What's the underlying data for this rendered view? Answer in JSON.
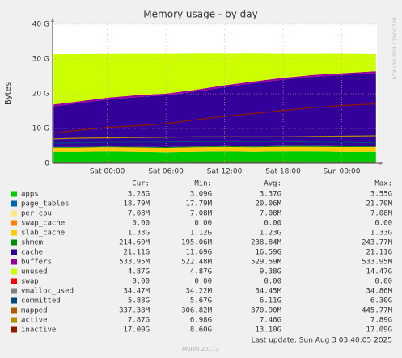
{
  "chart_data": {
    "type": "area",
    "title": "Memory usage - by day",
    "ylabel": "Bytes",
    "watermark": "RRDTOOL / TOBI OETIKER",
    "x": [
      -5.5,
      -3,
      0,
      3,
      6,
      9,
      12,
      15,
      18,
      21,
      24,
      27.5
    ],
    "xlim": [
      -5.6,
      27.6
    ],
    "xticks": [
      {
        "value": 0,
        "label": "Sat 00:00"
      },
      {
        "value": 6,
        "label": "Sat 06:00"
      },
      {
        "value": 12,
        "label": "Sat 12:00"
      },
      {
        "value": 18,
        "label": "Sat 18:00"
      },
      {
        "value": 24,
        "label": "Sun 00:00"
      }
    ],
    "ylim": [
      0,
      40
    ],
    "yticks": [
      {
        "value": 0,
        "label": "0"
      },
      {
        "value": 10,
        "label": "10 G"
      },
      {
        "value": 20,
        "label": "20 G"
      },
      {
        "value": 30,
        "label": "30 G"
      },
      {
        "value": 40,
        "label": "40 G"
      }
    ],
    "grid": true,
    "stat_headers": [
      "Cur:",
      "Min:",
      "Avg:",
      "Max:"
    ],
    "series": [
      {
        "name": "apps",
        "color": "#00cc00",
        "kind": "area",
        "values": [
          3.3,
          3.3,
          3.4,
          3.3,
          3.2,
          3.3,
          3.4,
          3.3,
          3.4,
          3.4,
          3.3,
          3.3
        ],
        "stats": [
          "3.28G",
          "3.09G",
          "3.37G",
          "3.55G"
        ]
      },
      {
        "name": "page_tables",
        "color": "#0066b3",
        "kind": "area",
        "values": [
          0.02,
          0.02,
          0.02,
          0.02,
          0.02,
          0.02,
          0.02,
          0.02,
          0.02,
          0.02,
          0.02,
          0.02
        ],
        "stats": [
          "18.79M",
          "17.79M",
          "20.06M",
          "21.70M"
        ]
      },
      {
        "name": "per_cpu",
        "color": "#ffe680",
        "kind": "area",
        "values": [
          0.007,
          0.007,
          0.007,
          0.007,
          0.007,
          0.007,
          0.007,
          0.007,
          0.007,
          0.007,
          0.007,
          0.007
        ],
        "stats": [
          "7.08M",
          "7.08M",
          "7.08M",
          "7.08M"
        ]
      },
      {
        "name": "swap_cache",
        "color": "#ff8000",
        "kind": "area",
        "values": [
          0,
          0,
          0,
          0,
          0,
          0,
          0,
          0,
          0,
          0,
          0,
          0
        ],
        "stats": [
          "0.00",
          "0.00",
          "0.00",
          "0.00"
        ]
      },
      {
        "name": "slab_cache",
        "color": "#ffcc00",
        "kind": "area",
        "values": [
          1.15,
          1.15,
          1.2,
          1.2,
          1.2,
          1.25,
          1.25,
          1.25,
          1.3,
          1.3,
          1.33,
          1.33
        ],
        "stats": [
          "1.33G",
          "1.12G",
          "1.23G",
          "1.33G"
        ]
      },
      {
        "name": "shmem",
        "color": "#008f00",
        "kind": "area",
        "values": [
          0.2,
          0.2,
          0.2,
          0.22,
          0.22,
          0.23,
          0.23,
          0.24,
          0.24,
          0.24,
          0.22,
          0.21
        ],
        "stats": [
          "214.60M",
          "195.06M",
          "238.84M",
          "243.77M"
        ]
      },
      {
        "name": "cache",
        "color": "#330099",
        "kind": "area",
        "values": [
          11.7,
          12.6,
          13.5,
          14.3,
          14.9,
          15.8,
          17.0,
          18.2,
          19.1,
          19.9,
          20.5,
          21.1
        ],
        "stats": [
          "21.11G",
          "11.69G",
          "16.59G",
          "21.11G"
        ]
      },
      {
        "name": "buffers",
        "color": "#990099",
        "kind": "area",
        "values": [
          0.52,
          0.52,
          0.53,
          0.53,
          0.53,
          0.53,
          0.53,
          0.53,
          0.53,
          0.53,
          0.53,
          0.53
        ],
        "stats": [
          "533.95M",
          "522.48M",
          "529.59M",
          "533.95M"
        ]
      },
      {
        "name": "unused",
        "color": "#ccff00",
        "kind": "area",
        "values": [
          14.5,
          13.6,
          12.6,
          11.9,
          11.4,
          10.4,
          9.1,
          8.0,
          6.9,
          6.1,
          5.6,
          4.9
        ],
        "stats": [
          "4.87G",
          "4.87G",
          "9.38G",
          "14.47G"
        ]
      },
      {
        "name": "swap",
        "color": "#ff0000",
        "kind": "area",
        "values": [
          0,
          0,
          0,
          0,
          0,
          0,
          0,
          0,
          0,
          0,
          0,
          0
        ],
        "stats": [
          "0.00",
          "0.00",
          "0.00",
          "0.00"
        ]
      },
      {
        "name": "vmalloc_used",
        "color": "#808080",
        "kind": "line",
        "values": [
          0.034,
          0.034,
          0.034,
          0.034,
          0.034,
          0.034,
          0.034,
          0.034,
          0.034,
          0.034,
          0.034,
          0.034
        ],
        "stats": [
          "34.47M",
          "34.22M",
          "34.45M",
          "34.86M"
        ]
      },
      {
        "name": "committed",
        "color": "#00487d",
        "kind": "line",
        "values": [
          5.8,
          5.9,
          6.0,
          6.1,
          6.1,
          6.2,
          6.2,
          6.2,
          6.2,
          6.1,
          6.0,
          5.9
        ],
        "stats": [
          "5.88G",
          "5.67G",
          "6.11G",
          "6.30G"
        ]
      },
      {
        "name": "mapped",
        "color": "#b35a00",
        "kind": "line",
        "values": [
          0.31,
          0.33,
          0.37,
          0.38,
          0.4,
          0.41,
          0.42,
          0.43,
          0.41,
          0.38,
          0.35,
          0.34
        ],
        "stats": [
          "337.38M",
          "306.82M",
          "370.90M",
          "445.77M"
        ]
      },
      {
        "name": "active",
        "color": "#b38f00",
        "kind": "line",
        "values": [
          7.0,
          7.2,
          7.3,
          7.4,
          7.5,
          7.6,
          7.6,
          7.6,
          7.6,
          7.7,
          7.8,
          7.9
        ],
        "stats": [
          "7.87G",
          "6.98G",
          "7.46G",
          "7.89G"
        ]
      },
      {
        "name": "inactive",
        "color": "#8f1a00",
        "kind": "line",
        "values": [
          8.6,
          9.5,
          10.3,
          10.8,
          11.4,
          12.5,
          13.5,
          14.3,
          15.2,
          16.0,
          16.6,
          17.1
        ],
        "stats": [
          "17.09G",
          "8.60G",
          "13.10G",
          "17.09G"
        ]
      }
    ],
    "last_update": "Last update: Sun Aug  3 03:40:05 2025",
    "version": "Munin 2.0.73"
  }
}
